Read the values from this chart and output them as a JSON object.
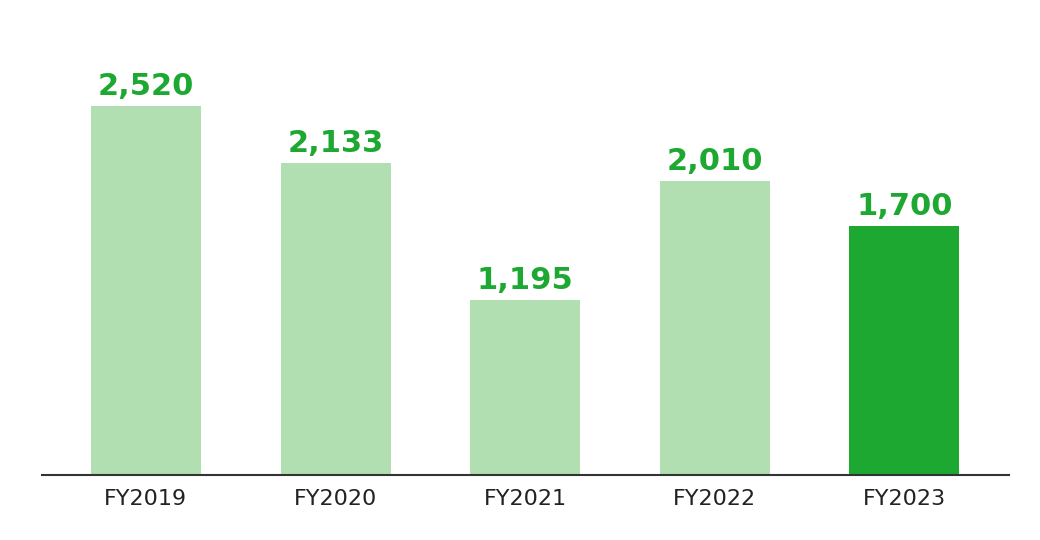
{
  "categories": [
    "FY2019",
    "FY2020",
    "FY2021",
    "FY2022",
    "FY2023"
  ],
  "values": [
    2520,
    2133,
    1195,
    2010,
    1700
  ],
  "bar_colors": [
    "#b2dfb2",
    "#b2dfb2",
    "#b2dfb2",
    "#b2dfb2",
    "#1da832"
  ],
  "label_color": "#1da832",
  "label_format": "{:,}",
  "background_color": "#ffffff",
  "xlabel_fontsize": 16,
  "label_fontsize": 22,
  "ylim": [
    0,
    2950
  ],
  "bar_width": 0.58
}
